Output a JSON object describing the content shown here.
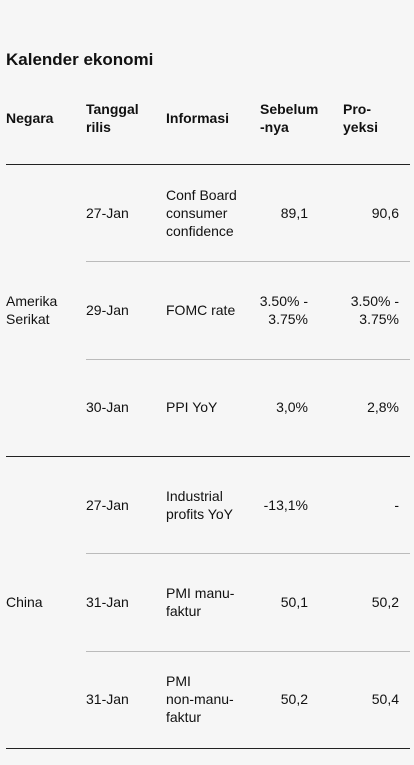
{
  "title": "Kalender ekonomi",
  "header": [
    "Negara",
    "Tanggal\nrilis",
    "Informasi",
    "Sebelum\n-nya",
    "Pro-\nyeksi"
  ],
  "groups": [
    {
      "country": "Amerika\nSerikat",
      "rows": [
        {
          "date": "27-Jan",
          "info": "Conf Board\nconsumer\nconfidence",
          "previous": "89,1",
          "forecast": "90,6"
        },
        {
          "date": "29-Jan",
          "info": "FOMC rate",
          "previous": "3.50% -\n3.75%",
          "forecast": "3.50% -\n3.75%"
        },
        {
          "date": "30-Jan",
          "info": "PPI YoY",
          "previous": "3,0%",
          "forecast": "2,8%"
        }
      ]
    },
    {
      "country": "China",
      "rows": [
        {
          "date": "27-Jan",
          "info": "Industrial\nprofits YoY",
          "previous": "-13,1%",
          "forecast": "-"
        },
        {
          "date": "31-Jan",
          "info": "PMI manu-\nfaktur",
          "previous": "50,1",
          "forecast": "50,2"
        },
        {
          "date": "31-Jan",
          "info": "PMI\nnon-manu-\nfaktur",
          "previous": "50,2",
          "forecast": "50,4"
        }
      ]
    }
  ]
}
